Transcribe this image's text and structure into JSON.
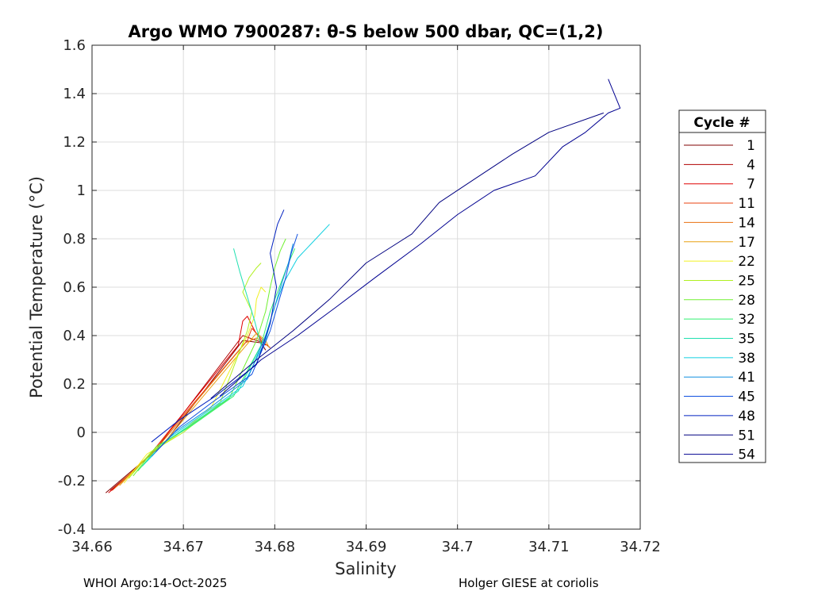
{
  "chart_data": {
    "type": "line",
    "title": "Argo WMO 7900287: θ-S below 500 dbar,  QC=(1,2)",
    "xlabel": "Salinity",
    "ylabel": "Potential Temperature (°C)",
    "xlim": [
      34.66,
      34.72
    ],
    "ylim": [
      -0.4,
      1.6
    ],
    "x_ticks": [
      34.66,
      34.67,
      34.68,
      34.69,
      34.7,
      34.71,
      34.72
    ],
    "x_tick_labels": [
      "34.66",
      "34.67",
      "34.68",
      "34.69",
      "34.7",
      "34.71",
      "34.72"
    ],
    "y_ticks": [
      -0.4,
      -0.2,
      0,
      0.2,
      0.4,
      0.6,
      0.8,
      1,
      1.2,
      1.4,
      1.6
    ],
    "y_tick_labels": [
      "-0.4",
      "-0.2",
      "0",
      "0.2",
      "0.4",
      "0.6",
      "0.8",
      "1",
      "1.2",
      "1.4",
      "1.6"
    ],
    "grid": true,
    "legend": {
      "title": "Cycle #",
      "placement": "right-outside",
      "entries": [
        "1",
        "4",
        "7",
        "11",
        "14",
        "17",
        "22",
        "25",
        "28",
        "32",
        "35",
        "38",
        "41",
        "45",
        "48",
        "51",
        "54"
      ],
      "colors": [
        "#800000",
        "#b00000",
        "#e00000",
        "#e84010",
        "#e87010",
        "#e8a010",
        "#f0f020",
        "#b0f020",
        "#70f030",
        "#30f070",
        "#20e0b0",
        "#10d0e0",
        "#1090e0",
        "#1050e0",
        "#0020c0",
        "#000080",
        "#000090"
      ]
    },
    "series": [
      {
        "name": "1",
        "color": "#800000",
        "x": [
          34.6615,
          34.664,
          34.6665,
          34.6678,
          34.6765,
          34.6785,
          34.679
        ],
        "y": [
          -0.25,
          -0.17,
          -0.09,
          -0.05,
          0.38,
          0.37,
          0.34
        ]
      },
      {
        "name": "4",
        "color": "#b00000",
        "x": [
          34.662,
          34.6645,
          34.6668,
          34.6765,
          34.678,
          34.6788,
          34.6795
        ],
        "y": [
          -0.24,
          -0.16,
          -0.08,
          0.4,
          0.38,
          0.37,
          0.35
        ]
      },
      {
        "name": "7",
        "color": "#e00000",
        "x": [
          34.6618,
          34.6643,
          34.6666,
          34.676,
          34.6765,
          34.677,
          34.6778,
          34.6785,
          34.679
        ],
        "y": [
          -0.25,
          -0.17,
          -0.08,
          0.36,
          0.46,
          0.48,
          0.42,
          0.38,
          0.36
        ]
      },
      {
        "name": "11",
        "color": "#e84010",
        "x": [
          34.6622,
          34.6646,
          34.6668,
          34.677,
          34.6775,
          34.6782,
          34.679
        ],
        "y": [
          -0.24,
          -0.16,
          -0.07,
          0.38,
          0.43,
          0.4,
          0.37
        ]
      },
      {
        "name": "14",
        "color": "#e87010",
        "x": [
          34.6625,
          34.665,
          34.667,
          34.6768,
          34.678,
          34.6792
        ],
        "y": [
          -0.23,
          -0.14,
          -0.07,
          0.37,
          0.39,
          0.36
        ]
      },
      {
        "name": "17",
        "color": "#e8a010",
        "x": [
          34.663,
          34.6655,
          34.6675,
          34.678,
          34.679,
          34.6794
        ],
        "y": [
          -0.22,
          -0.12,
          -0.06,
          0.41,
          0.38,
          0.35
        ]
      },
      {
        "name": "22",
        "color": "#f0f020",
        "x": [
          34.6635,
          34.666,
          34.669,
          34.673,
          34.677,
          34.6778,
          34.678,
          34.6785,
          34.679
        ],
        "y": [
          -0.21,
          -0.09,
          -0.02,
          0.1,
          0.4,
          0.48,
          0.55,
          0.6,
          0.58
        ]
      },
      {
        "name": "25",
        "color": "#b0f020",
        "x": [
          34.664,
          34.6665,
          34.67,
          34.674,
          34.677,
          34.6775,
          34.6765,
          34.6772,
          34.678,
          34.6785
        ],
        "y": [
          -0.19,
          -0.08,
          0.0,
          0.12,
          0.42,
          0.5,
          0.58,
          0.64,
          0.68,
          0.7
        ]
      },
      {
        "name": "28",
        "color": "#70f030",
        "x": [
          34.6645,
          34.667,
          34.6705,
          34.675,
          34.678,
          34.679,
          34.6795,
          34.68,
          34.6806,
          34.6812
        ],
        "y": [
          -0.18,
          -0.06,
          0.02,
          0.14,
          0.38,
          0.5,
          0.6,
          0.68,
          0.75,
          0.8
        ]
      },
      {
        "name": "32",
        "color": "#30f070",
        "x": [
          34.665,
          34.6675,
          34.671,
          34.6755,
          34.6785,
          34.6795,
          34.6805,
          34.6815,
          34.6822
        ],
        "y": [
          -0.16,
          -0.05,
          0.03,
          0.15,
          0.36,
          0.5,
          0.6,
          0.7,
          0.76
        ]
      },
      {
        "name": "35",
        "color": "#20e0b0",
        "x": [
          34.6655,
          34.668,
          34.6715,
          34.676,
          34.6785,
          34.6778,
          34.677,
          34.6762,
          34.6755
        ],
        "y": [
          -0.14,
          -0.04,
          0.05,
          0.17,
          0.36,
          0.46,
          0.56,
          0.66,
          0.76
        ]
      },
      {
        "name": "38",
        "color": "#10d0e0",
        "x": [
          34.666,
          34.6685,
          34.672,
          34.6765,
          34.679,
          34.6798,
          34.681,
          34.6825,
          34.6845,
          34.686
        ],
        "y": [
          -0.12,
          -0.02,
          0.07,
          0.19,
          0.38,
          0.5,
          0.62,
          0.72,
          0.8,
          0.86
        ]
      },
      {
        "name": "41",
        "color": "#1090e0",
        "x": [
          34.6665,
          34.669,
          34.6725,
          34.677,
          34.679,
          34.68,
          34.6808,
          34.6815,
          34.682
        ],
        "y": [
          -0.1,
          0.0,
          0.09,
          0.22,
          0.4,
          0.52,
          0.62,
          0.7,
          0.78
        ]
      },
      {
        "name": "45",
        "color": "#1050e0",
        "x": [
          34.667,
          34.6695,
          34.673,
          34.6775,
          34.6795,
          34.6805,
          34.6812,
          34.6818,
          34.6825
        ],
        "y": [
          -0.08,
          0.02,
          0.12,
          0.24,
          0.42,
          0.55,
          0.64,
          0.74,
          0.82
        ]
      },
      {
        "name": "48",
        "color": "#0020c0",
        "x": [
          34.6665,
          34.6695,
          34.6735,
          34.678,
          34.6795,
          34.6802,
          34.6795,
          34.6803,
          34.681
        ],
        "y": [
          -0.04,
          0.05,
          0.15,
          0.28,
          0.45,
          0.6,
          0.74,
          0.86,
          0.92
        ]
      },
      {
        "name": "51",
        "color": "#000080",
        "x": [
          34.673,
          34.678,
          34.682,
          34.686,
          34.69,
          34.695,
          34.698,
          34.702,
          34.706,
          34.71,
          34.716
        ],
        "y": [
          0.14,
          0.3,
          0.42,
          0.55,
          0.7,
          0.82,
          0.95,
          1.05,
          1.15,
          1.24,
          1.32
        ]
      },
      {
        "name": "54",
        "color": "#000090",
        "x": [
          34.674,
          34.6785,
          34.6825,
          34.6868,
          34.691,
          34.696,
          34.7,
          34.704,
          34.7085,
          34.7115,
          34.714,
          34.7165,
          34.7178,
          34.7165
        ],
        "y": [
          0.15,
          0.3,
          0.4,
          0.52,
          0.64,
          0.78,
          0.9,
          1.0,
          1.06,
          1.18,
          1.24,
          1.32,
          1.34,
          1.46
        ]
      }
    ]
  },
  "footer": {
    "left": "WHOI Argo:14-Oct-2025",
    "right": "Holger GIESE at coriolis"
  }
}
